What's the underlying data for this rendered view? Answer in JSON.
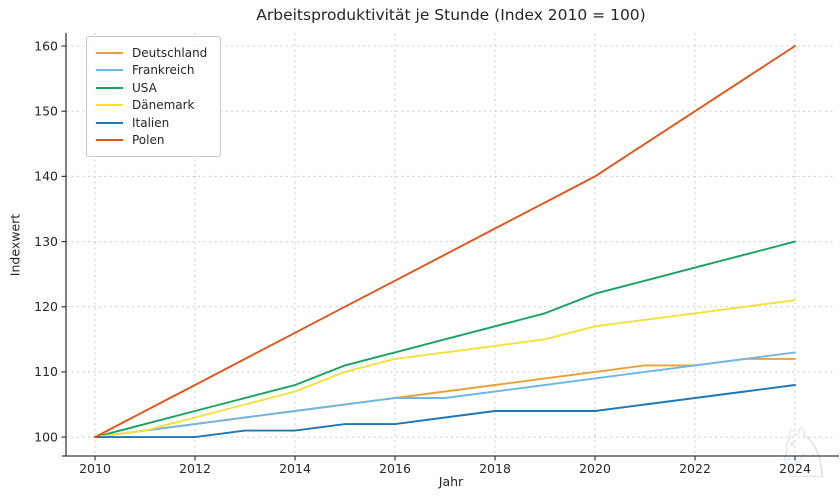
{
  "title": "Arbeitsproduktivität je Stunde (Index 2010 = 100)",
  "chart_data": {
    "type": "line",
    "title": "Arbeitsproduktivität je Stunde (Index 2010 = 100)",
    "xlabel": "Jahr",
    "ylabel": "Indexwert",
    "x": [
      2010,
      2011,
      2012,
      2013,
      2014,
      2015,
      2016,
      2017,
      2018,
      2019,
      2020,
      2021,
      2022,
      2023,
      2024
    ],
    "series": [
      {
        "name": "Deutschland",
        "color": "#e9a13b",
        "values": [
          100,
          101,
          102,
          103,
          104,
          105,
          106,
          107,
          108,
          109,
          110,
          111,
          111,
          112,
          112
        ]
      },
      {
        "name": "Frankreich",
        "color": "#6db8e8",
        "values": [
          100,
          101,
          102,
          103,
          104,
          105,
          106,
          106,
          107,
          108,
          109,
          110,
          111,
          112,
          113
        ]
      },
      {
        "name": "USA",
        "color": "#17a35e",
        "values": [
          100,
          102,
          104,
          106,
          108,
          111,
          113,
          115,
          117,
          119,
          122,
          124,
          126,
          128,
          130
        ]
      },
      {
        "name": "Dänemark",
        "color": "#f3e13a",
        "values": [
          100,
          101,
          103,
          105,
          107,
          110,
          112,
          113,
          114,
          115,
          117,
          118,
          119,
          120,
          121
        ]
      },
      {
        "name": "Italien",
        "color": "#1f77b4",
        "values": [
          100,
          100,
          100,
          101,
          101,
          102,
          102,
          103,
          104,
          104,
          104,
          105,
          106,
          107,
          108
        ]
      },
      {
        "name": "Polen",
        "color": "#e2551b",
        "values": [
          100,
          104,
          108,
          112,
          116,
          120,
          124,
          128,
          132,
          136,
          140,
          145,
          150,
          155,
          160
        ]
      }
    ],
    "xticks": [
      2010,
      2012,
      2014,
      2016,
      2018,
      2020,
      2022,
      2024
    ],
    "yticks": [
      100,
      110,
      120,
      130,
      140,
      150,
      160
    ],
    "xlim": [
      2009.42,
      2024.82
    ],
    "ylim": [
      97.1,
      162.0
    ],
    "grid": true,
    "legend_position": "upper-left"
  },
  "colors": {
    "grid": "#cccccc",
    "spine": "#3a3a3a",
    "tick_text": "#262626"
  },
  "watermark": {
    "icon": "horseman-knight-watermark",
    "glyph": "♘"
  }
}
